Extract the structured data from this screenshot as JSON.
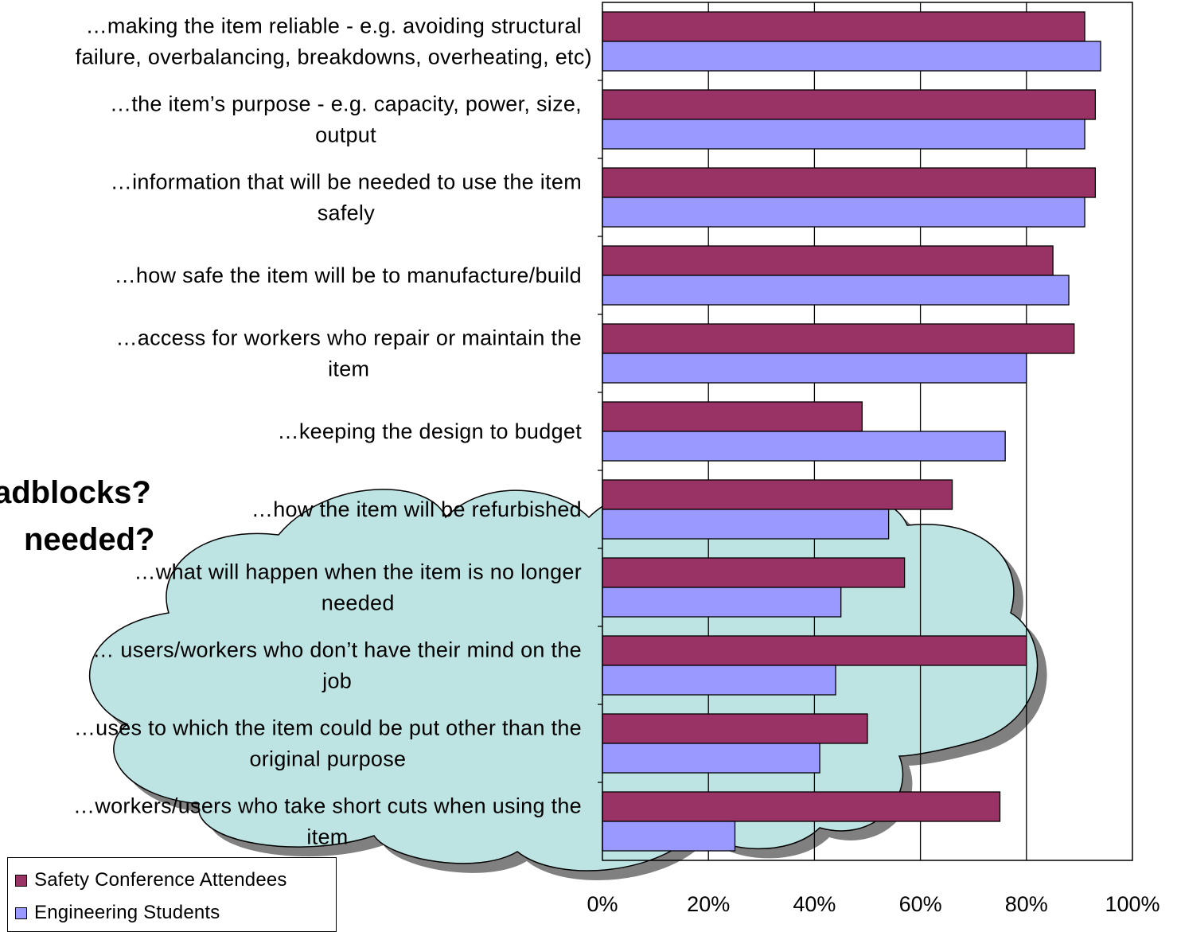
{
  "background_text": [
    "adblocks?",
    "needed?"
  ],
  "chart_data": {
    "type": "bar",
    "orientation": "horizontal",
    "categories": [
      [
        "…making the item reliable  - e.g. avoiding structural",
        "failure, overbalancing, breakdowns, overheating, etc)"
      ],
      [
        "…the item’s purpose - e.g. capacity, power, size,",
        "output"
      ],
      [
        "…information that will be needed to use the item",
        "safely"
      ],
      [
        "…how safe the item will be to manufacture/build"
      ],
      [
        "…access for workers who repair or maintain the",
        "item"
      ],
      [
        "…keeping the design to budget"
      ],
      [
        "…how the item will be refurbished"
      ],
      [
        "…what will happen when the item is no longer",
        "needed"
      ],
      [
        "… users/workers who don’t have their mind on the",
        "job"
      ],
      [
        "…uses to which the item could be put other than the",
        "original purpose"
      ],
      [
        "…workers/users who take short cuts when using the",
        "item"
      ]
    ],
    "series": [
      {
        "name": "Safety Conference Attendees",
        "color": "#993366",
        "values": [
          91,
          93,
          93,
          85,
          89,
          49,
          66,
          57,
          80,
          50,
          75
        ]
      },
      {
        "name": "Engineering Students",
        "color": "#9999ff",
        "values": [
          94,
          91,
          91,
          88,
          80,
          76,
          54,
          45,
          44,
          41,
          25
        ]
      }
    ],
    "xlim": [
      0,
      100
    ],
    "x_ticks": [
      "0%",
      "20%",
      "40%",
      "60%",
      "80%",
      "100%"
    ],
    "grid": "vertical",
    "legend_position": "bottom-left"
  }
}
